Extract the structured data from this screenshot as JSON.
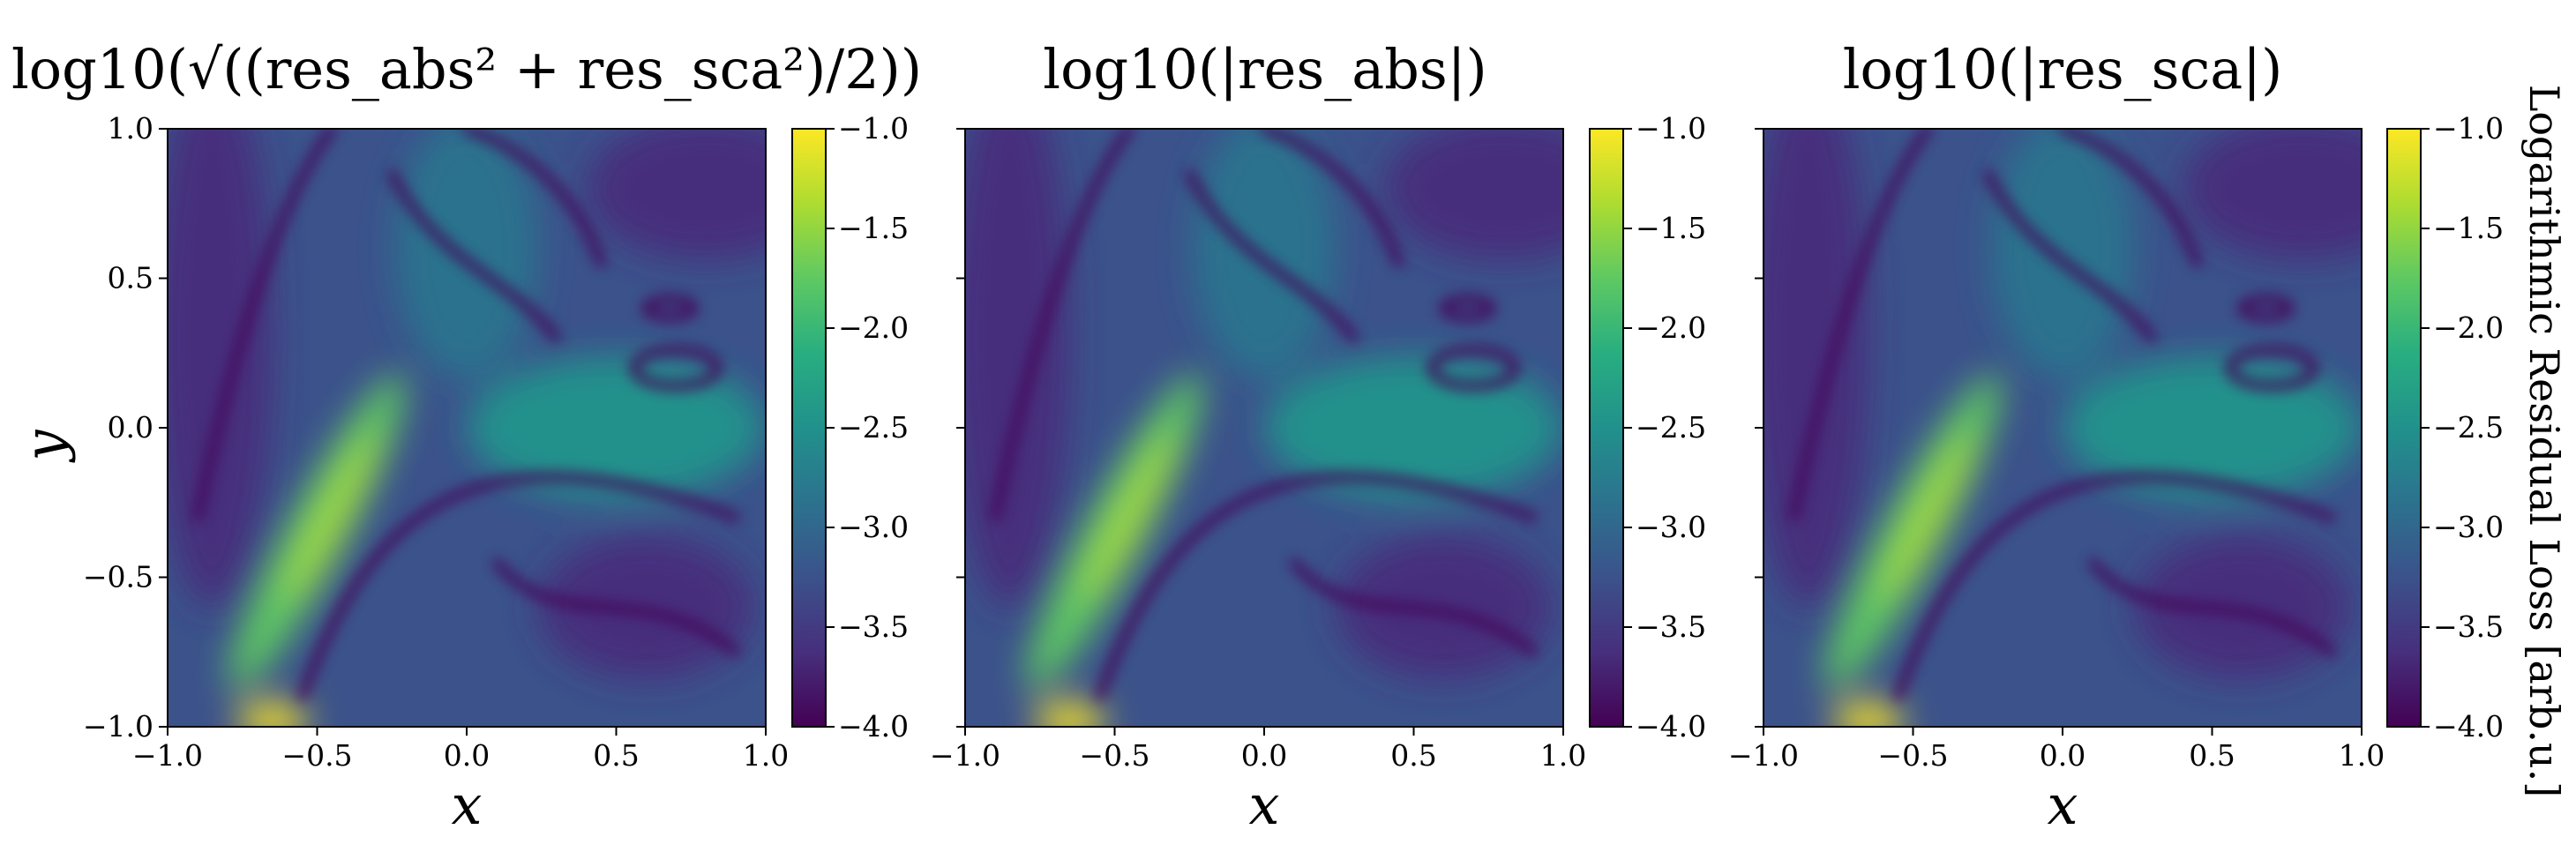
{
  "figure": {
    "colorbar_label": "Logarithmic Residual Loss [arb.u.]",
    "colormap": "viridis",
    "colormap_stops": [
      "#440154",
      "#472f7d",
      "#3b528b",
      "#2c728e",
      "#21918c",
      "#28ae80",
      "#5ec962",
      "#addc30",
      "#fde725"
    ]
  },
  "chart_data": [
    {
      "type": "heatmap",
      "title": "log10(√((res_abs² + res_sca²)/2))",
      "xlabel": "x",
      "ylabel": "y",
      "xlim": [
        -1.0,
        1.0
      ],
      "ylim": [
        -1.0,
        1.0
      ],
      "xticks": [
        "−1.0",
        "−0.5",
        "0.0",
        "0.5",
        "1.0"
      ],
      "yticks": [
        "−1.0",
        "−0.5",
        "0.0",
        "0.5",
        "1.0"
      ],
      "colorbar": {
        "min": -4.0,
        "max": -1.0,
        "ticks": [
          "−1.0",
          "−1.5",
          "−2.0",
          "−2.5",
          "−3.0",
          "−3.5",
          "−4.0"
        ]
      }
    },
    {
      "type": "heatmap",
      "title": "log10(|res_abs|)",
      "xlabel": "x",
      "ylabel": "",
      "xlim": [
        -1.0,
        1.0
      ],
      "ylim": [
        -1.0,
        1.0
      ],
      "xticks": [
        "−1.0",
        "−0.5",
        "0.0",
        "0.5",
        "1.0"
      ],
      "yticks": [],
      "colorbar": {
        "min": -4.0,
        "max": -1.0,
        "ticks": [
          "−1.0",
          "−1.5",
          "−2.0",
          "−2.5",
          "−3.0",
          "−3.5",
          "−4.0"
        ]
      }
    },
    {
      "type": "heatmap",
      "title": "log10(|res_sca|)",
      "xlabel": "x",
      "ylabel": "",
      "xlim": [
        -1.0,
        1.0
      ],
      "ylim": [
        -1.0,
        1.0
      ],
      "xticks": [
        "−1.0",
        "−0.5",
        "0.0",
        "0.5",
        "1.0"
      ],
      "yticks": [],
      "colorbar": {
        "min": -4.0,
        "max": -1.0,
        "ticks": [
          "−1.0",
          "−1.5",
          "−2.0",
          "−2.5",
          "−3.0",
          "−3.5",
          "−4.0"
        ]
      }
    }
  ]
}
